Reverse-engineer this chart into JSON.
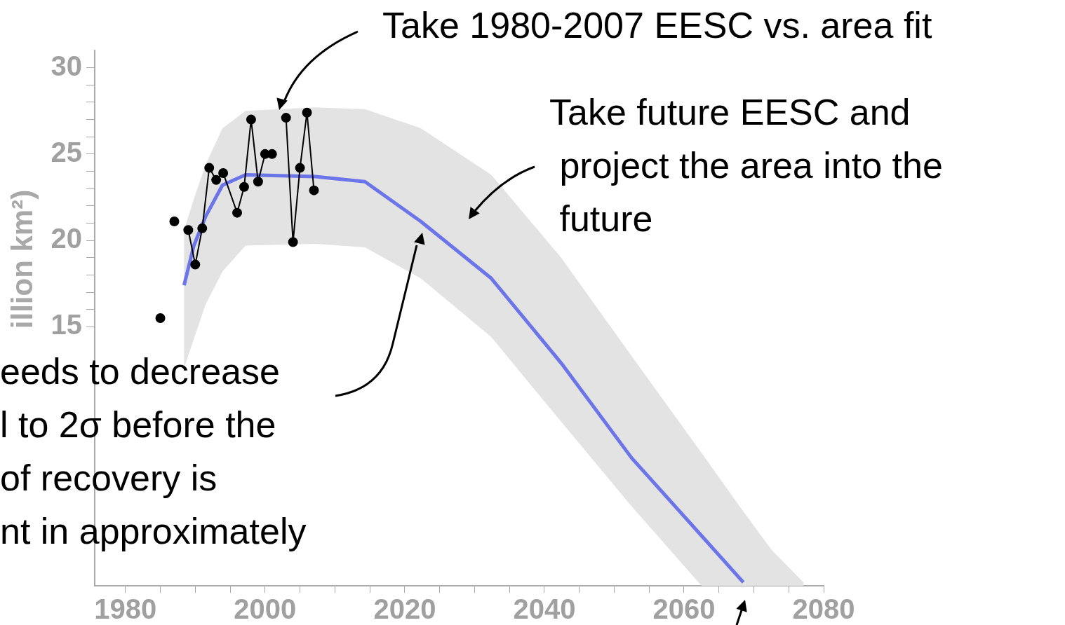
{
  "chart_data": {
    "type": "line",
    "ylabel": "illion km²)",
    "xlim": [
      1975.6,
      2080
    ],
    "xticks": [
      1980,
      {
        "value": 1985,
        "label": null
      },
      2000,
      {
        "value": 1990,
        "label": null
      },
      {
        "value": 1995,
        "label": null
      },
      {
        "value": 2005,
        "label": null
      },
      {
        "value": 2010,
        "label": null
      },
      {
        "value": 2015,
        "label": null
      },
      2020,
      {
        "value": 2025,
        "label": null
      },
      {
        "value": 2030,
        "label": null
      },
      {
        "value": 2035,
        "label": null
      },
      2040,
      {
        "value": 2045,
        "label": null
      },
      {
        "value": 2050,
        "label": null
      },
      {
        "value": 2055,
        "label": null
      },
      2060,
      {
        "value": 2065,
        "label": null
      },
      {
        "value": 2070,
        "label": null
      },
      {
        "value": 2075,
        "label": null
      },
      2080
    ],
    "ylim": [
      0,
      31
    ],
    "yticks": [
      15,
      {
        "value": 16,
        "label": null
      },
      {
        "value": 17,
        "label": null
      },
      {
        "value": 18,
        "label": null
      },
      {
        "value": 19,
        "label": null
      },
      20,
      {
        "value": 21,
        "label": null
      },
      {
        "value": 22,
        "label": null
      },
      {
        "value": 23,
        "label": null
      },
      {
        "value": 24,
        "label": null
      },
      25,
      {
        "value": 26,
        "label": null
      },
      {
        "value": 27,
        "label": null
      },
      {
        "value": 28,
        "label": null
      },
      {
        "value": 29,
        "label": null
      },
      30
    ],
    "series": [
      {
        "type": "line",
        "color": "#000000",
        "marker": "circle",
        "x": [
          1985,
          1986,
          1987,
          1988,
          1989,
          1990,
          1991,
          1992,
          1993,
          1994,
          1996,
          1997,
          1998,
          1999,
          2000,
          2001,
          2002,
          2003,
          2004,
          2005,
          2006,
          2007
        ],
        "values": [
          15.5,
          null,
          21.1,
          null,
          20.6,
          18.6,
          20.7,
          24.2,
          23.5,
          23.9,
          21.6,
          23.1,
          27.0,
          23.4,
          25.0,
          25.0,
          null,
          27.1,
          19.9,
          24.2,
          27.4,
          22.9
        ]
      },
      {
        "type": "line",
        "color": "#6b74e8",
        "marker": "none",
        "x": [
          1988.4,
          1989.8,
          1991.5,
          1993.9,
          1997.2,
          2007.2,
          2014.3,
          2022.3,
          2032.4,
          2042.4,
          2052.5,
          2062.5,
          2068.5,
          2072.5,
          2077.1
        ],
        "values": [
          17.4,
          19.7,
          21.4,
          23.2,
          23.8,
          23.7,
          23.4,
          21.1,
          17.8,
          12.9,
          7.4,
          2.9,
          0.2,
          null,
          null
        ],
        "upper": [
          20.6,
          22.4,
          24.4,
          26.5,
          27.5,
          27.7,
          27.6,
          26.5,
          23.8,
          19.0,
          13.3,
          7.7,
          4.3,
          2.1,
          0.2
        ],
        "lower": [
          12.6,
          14.3,
          16.3,
          18.2,
          19.7,
          19.8,
          19.6,
          17.8,
          14.4,
          9.5,
          4.6,
          0.0,
          0.0,
          0.0,
          0.0
        ]
      }
    ],
    "annotations": [
      "Take 1980-2007 EESC vs. area fit",
      "Take future EESC and\n project the area into the\n future",
      "eeds to decrease\nl to 2σ before the\nof recovery is\nnt in approximately"
    ]
  }
}
